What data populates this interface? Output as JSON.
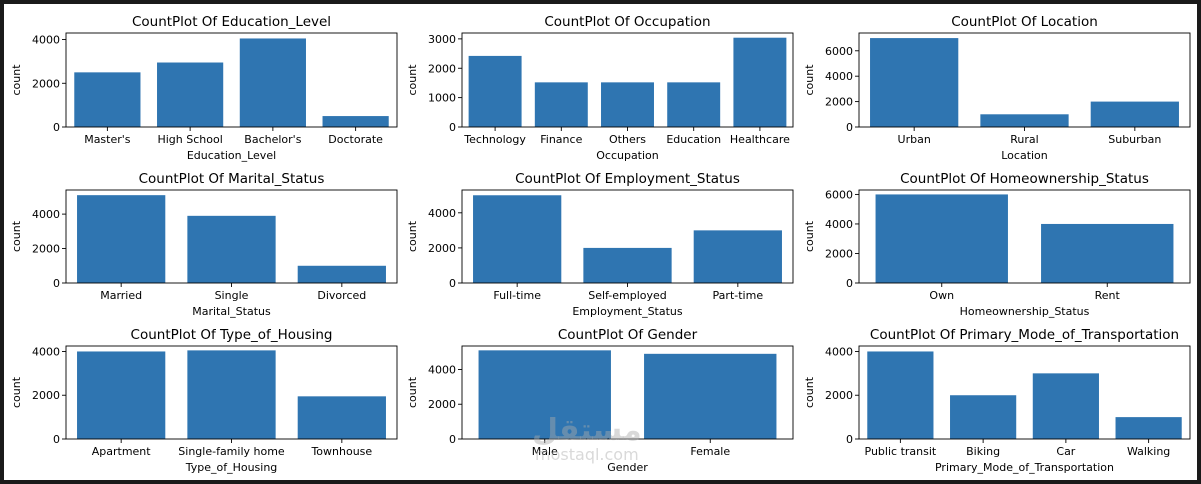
{
  "watermark": {
    "logo": "مستقل",
    "url": "mostaql.com"
  },
  "colors": {
    "bar": "#2f75b1",
    "axis": "#000000",
    "background": "#ffffff"
  },
  "chart_data": [
    {
      "type": "bar",
      "title": "CountPlot Of Education_Level",
      "xlabel": "Education_Level",
      "ylabel": "count",
      "categories": [
        "Master's",
        "High School",
        "Bachelor's",
        "Doctorate"
      ],
      "values": [
        2500,
        2950,
        4050,
        500
      ],
      "ylim": [
        0,
        4300
      ],
      "yticks": [
        0,
        2000,
        4000
      ]
    },
    {
      "type": "bar",
      "title": "CountPlot Of Occupation",
      "xlabel": "Occupation",
      "ylabel": "count",
      "categories": [
        "Technology",
        "Finance",
        "Others",
        "Education",
        "Healthcare"
      ],
      "values": [
        2420,
        1520,
        1520,
        1520,
        3040
      ],
      "ylim": [
        0,
        3200
      ],
      "yticks": [
        0,
        1000,
        2000,
        3000
      ]
    },
    {
      "type": "bar",
      "title": "CountPlot Of Location",
      "xlabel": "Location",
      "ylabel": "count",
      "categories": [
        "Urban",
        "Rural",
        "Suburban"
      ],
      "values": [
        7000,
        1000,
        2000
      ],
      "ylim": [
        0,
        7400
      ],
      "yticks": [
        0,
        2000,
        4000,
        6000
      ]
    },
    {
      "type": "bar",
      "title": "CountPlot Of Marital_Status",
      "xlabel": "Marital_Status",
      "ylabel": "count",
      "categories": [
        "Married",
        "Single",
        "Divorced"
      ],
      "values": [
        5100,
        3900,
        1000
      ],
      "ylim": [
        0,
        5400
      ],
      "yticks": [
        0,
        2000,
        4000
      ]
    },
    {
      "type": "bar",
      "title": "CountPlot Of Employment_Status",
      "xlabel": "Employment_Status",
      "ylabel": "count",
      "categories": [
        "Full-time",
        "Self-employed",
        "Part-time"
      ],
      "values": [
        5000,
        2000,
        3000
      ],
      "ylim": [
        0,
        5300
      ],
      "yticks": [
        0,
        2000,
        4000
      ]
    },
    {
      "type": "bar",
      "title": "CountPlot Of Homeownership_Status",
      "xlabel": "Homeownership_Status",
      "ylabel": "count",
      "categories": [
        "Own",
        "Rent"
      ],
      "values": [
        6000,
        4000
      ],
      "ylim": [
        0,
        6300
      ],
      "yticks": [
        0,
        2000,
        4000,
        6000
      ]
    },
    {
      "type": "bar",
      "title": "CountPlot Of Type_of_Housing",
      "xlabel": "Type_of_Housing",
      "ylabel": "count",
      "categories": [
        "Apartment",
        "Single-family home",
        "Townhouse"
      ],
      "values": [
        4000,
        4050,
        1950
      ],
      "ylim": [
        0,
        4250
      ],
      "yticks": [
        0,
        2000,
        4000
      ]
    },
    {
      "type": "bar",
      "title": "CountPlot Of Gender",
      "xlabel": "Gender",
      "ylabel": "count",
      "categories": [
        "Male",
        "Female"
      ],
      "values": [
        5100,
        4900
      ],
      "ylim": [
        0,
        5350
      ],
      "yticks": [
        0,
        2000,
        4000
      ]
    },
    {
      "type": "bar",
      "title": "CountPlot Of Primary_Mode_of_Transportation",
      "xlabel": "Primary_Mode_of_Transportation",
      "ylabel": "count",
      "categories": [
        "Public transit",
        "Biking",
        "Car",
        "Walking"
      ],
      "values": [
        4000,
        2000,
        3000,
        1000
      ],
      "ylim": [
        0,
        4250
      ],
      "yticks": [
        0,
        2000,
        4000
      ]
    }
  ]
}
